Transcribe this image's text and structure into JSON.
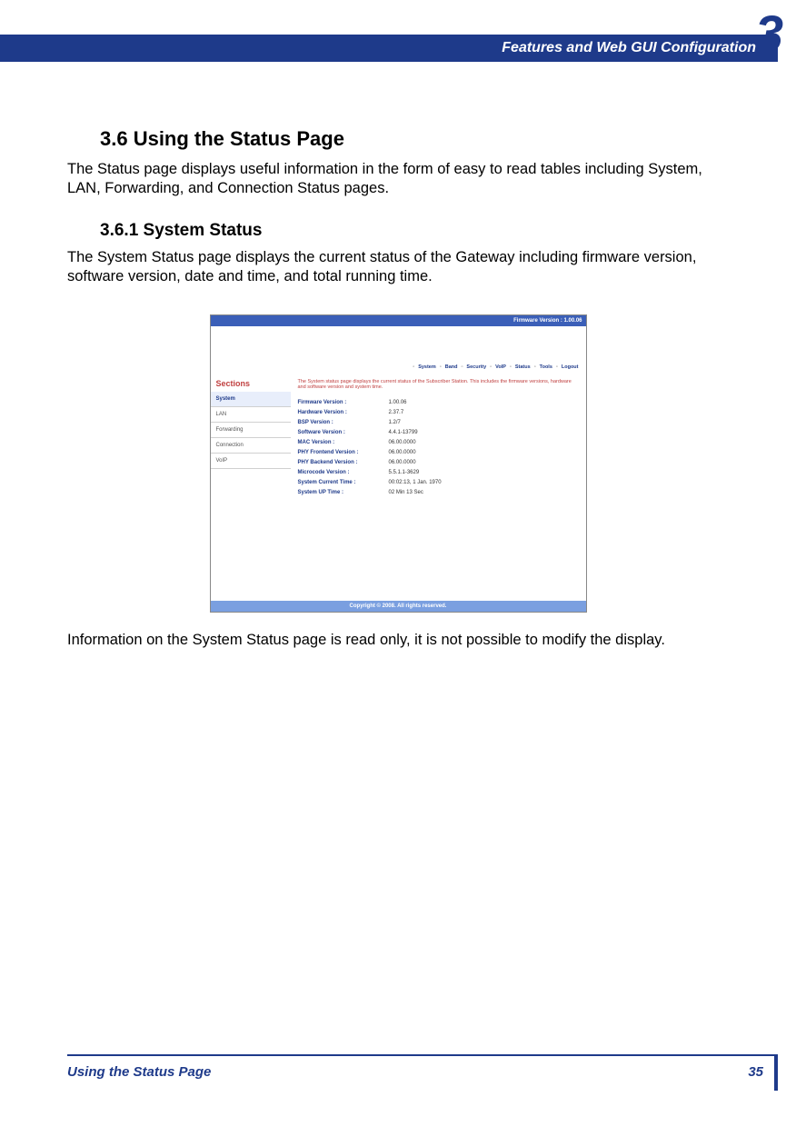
{
  "header": {
    "chapter_number": "3",
    "chapter_title": "Features and Web GUI Configuration"
  },
  "section": {
    "number_title": "3.6 Using the Status Page",
    "intro": "The Status page displays useful information in the form of easy to read tables including System, LAN, Forwarding, and Connection Status pages."
  },
  "subsection": {
    "number_title": "3.6.1 System Status",
    "intro": "The System Status page displays the current status of the Gateway including firmware version, software version, date and time, and total running time.",
    "outro": "Information on the System Status page is read only, it is not possible to modify the display."
  },
  "screenshot": {
    "topbar": "Firmware Version : 1.00.06",
    "nav": [
      "System",
      "Band",
      "Security",
      "VoIP",
      "Status",
      "Tools",
      "Logout"
    ],
    "sidebar_title": "Sections",
    "sidebar_items": [
      "System",
      "LAN",
      "Forwarding",
      "Connection",
      "VoIP"
    ],
    "active_sidebar_index": 0,
    "description": "The System status page displays the current status of the Subscriber Station. This includes the firmware versions, hardware and software version and system time.",
    "rows": [
      {
        "label": "Firmware Version :",
        "value": "1.00.06"
      },
      {
        "label": "Hardware Version :",
        "value": "2.37.7"
      },
      {
        "label": "BSP Version :",
        "value": "1.2/7"
      },
      {
        "label": "Software Version :",
        "value": "4.4.1-13799"
      },
      {
        "label": "MAC Version :",
        "value": "06.00.0000"
      },
      {
        "label": "PHY Frontend Version :",
        "value": "06.00.0000"
      },
      {
        "label": "PHY Backend Version :",
        "value": "06.00.0000"
      },
      {
        "label": "Microcode Version :",
        "value": "5.5.1.1-3629"
      },
      {
        "label": "System Current Time :",
        "value": "00:02:13, 1 Jan. 1970"
      },
      {
        "label": "System UP Time :",
        "value": "02 Min 13 Sec"
      }
    ],
    "footer": "Copyright © 2008.  All rights reserved."
  },
  "footer": {
    "left": "Using the Status Page",
    "page": "35"
  },
  "colors": {
    "brand_blue": "#1e3a8a",
    "light_blue": "#7a9fe0",
    "red_text": "#c04040"
  }
}
